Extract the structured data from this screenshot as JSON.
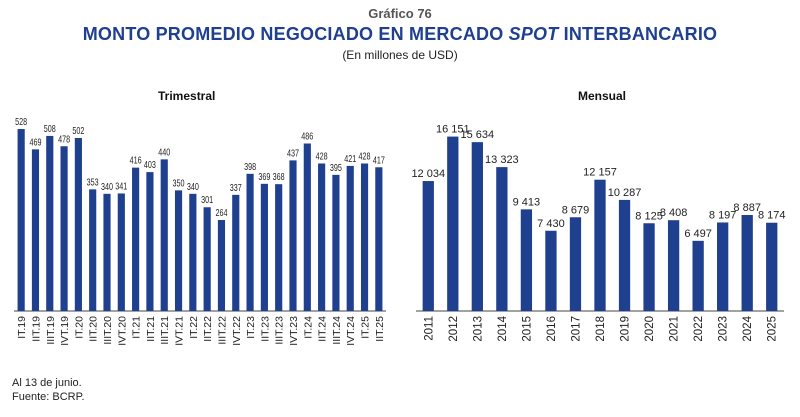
{
  "figure": {
    "number": "Gráfico 76",
    "title_pre": "MONTO PROMEDIO NEGOCIADO EN MERCADO ",
    "title_em": "SPOT",
    "title_post": " INTERBANCARIO",
    "subtitle": "(En millones de USD)"
  },
  "bar_color": "#1f3f8f",
  "chart_data": [
    {
      "type": "bar",
      "title": "Trimestral",
      "categories": [
        "IT.19",
        "IIT.19",
        "IIIT.19",
        "IVT.19",
        "IT.20",
        "IIT.20",
        "IIIT.20",
        "IVT.20",
        "IT.21",
        "IIT.21",
        "IIIT.21",
        "IVT.21",
        "IT.22",
        "IIT.22",
        "IIIT.22",
        "IVT.22",
        "IT.23",
        "IIT.23",
        "IIIT.23",
        "IVT.23",
        "IT.24",
        "IIT.24",
        "IIIT.24",
        "IVT.24",
        "IT.25",
        "IIT.25"
      ],
      "values": [
        528,
        469,
        508,
        478,
        502,
        353,
        340,
        341,
        416,
        403,
        440,
        350,
        340,
        301,
        264,
        337,
        398,
        369,
        368,
        437,
        486,
        428,
        395,
        421,
        428,
        417
      ],
      "value_labels": [
        "528",
        "469",
        "508",
        "478",
        "502",
        "353",
        "340",
        "341",
        "416",
        "403",
        "440",
        "350",
        "340",
        "301",
        "264",
        "337",
        "398",
        "369",
        "368",
        "437",
        "486",
        "428",
        "395",
        "421",
        "428",
        "417"
      ],
      "ylim": [
        0,
        560
      ],
      "xlabel": "",
      "ylabel": "",
      "grid": false
    },
    {
      "type": "bar",
      "title": "Mensual",
      "categories": [
        "2011",
        "2012",
        "2013",
        "2014",
        "2015",
        "2016",
        "2017",
        "2018",
        "2019",
        "2020",
        "2021",
        "2022",
        "2023",
        "2024",
        "2025"
      ],
      "values": [
        12034,
        16151,
        15634,
        13323,
        9413,
        7430,
        8679,
        12157,
        10287,
        8125,
        8408,
        6497,
        8197,
        8887,
        8174
      ],
      "value_labels": [
        "12 034",
        "16 151",
        "15 634",
        "13 323",
        "9 413",
        "7 430",
        "8 679",
        "12 157",
        "10 287",
        "8 125",
        "8 408",
        "6 497",
        "8 197",
        "8 887",
        "8 174"
      ],
      "ylim": [
        0,
        17500
      ],
      "xlabel": "",
      "ylabel": "",
      "grid": false
    }
  ],
  "footnote": "Al 13 de junio.",
  "source": "Fuente: BCRP."
}
